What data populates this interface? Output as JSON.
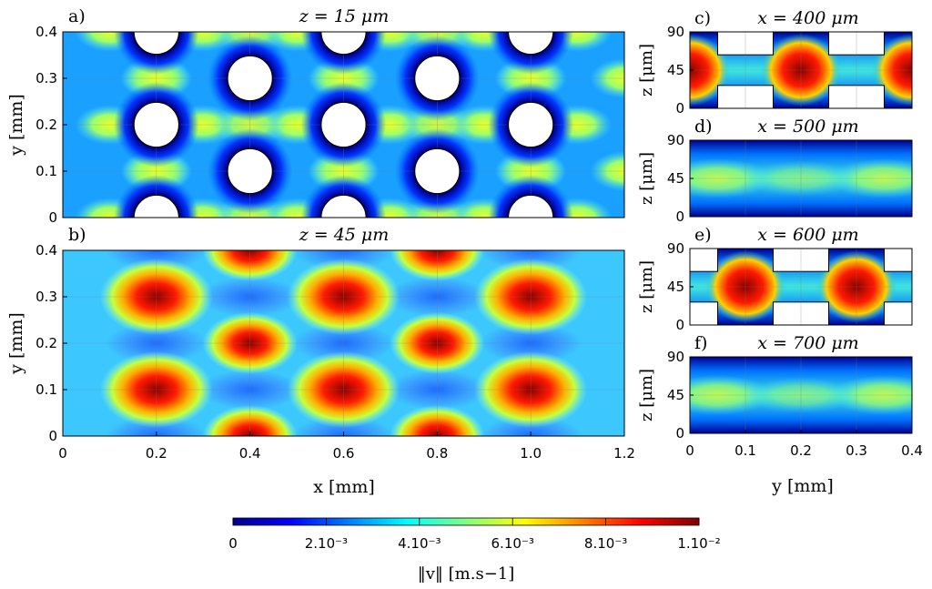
{
  "chart_data": [
    {
      "type": "heatmap",
      "panel": "a)",
      "title": "z = 15 μm",
      "xlabel": "",
      "ylabel": "y [mm]",
      "xlim": [
        0,
        1.2
      ],
      "ylim": [
        0,
        0.4
      ],
      "xticks": [],
      "yticks": [
        "0",
        "0.1",
        "0.2",
        "0.3",
        "0.4"
      ],
      "obstacles_xy_mm": [
        [
          0.2,
          0.0
        ],
        [
          0.2,
          0.2
        ],
        [
          0.2,
          0.4
        ],
        [
          0.4,
          0.1
        ],
        [
          0.4,
          0.3
        ],
        [
          0.6,
          0.0
        ],
        [
          0.6,
          0.2
        ],
        [
          0.6,
          0.4
        ],
        [
          0.8,
          0.1
        ],
        [
          0.8,
          0.3
        ],
        [
          1.0,
          0.0
        ],
        [
          1.0,
          0.2
        ],
        [
          1.0,
          0.4
        ]
      ],
      "obstacle_radius_mm": 0.048,
      "velocity_peak": 0.006,
      "grid": true
    },
    {
      "type": "heatmap",
      "panel": "b)",
      "title": "z = 45 μm",
      "xlabel": "x [mm]",
      "ylabel": "y [mm]",
      "xlim": [
        0,
        1.2
      ],
      "ylim": [
        0,
        0.4
      ],
      "xticks": [
        "0",
        "0.2",
        "0.4",
        "0.6",
        "0.8",
        "1.0",
        "1.2"
      ],
      "yticks": [
        "0",
        "0.1",
        "0.2",
        "0.3",
        "0.4"
      ],
      "hotspots_xy_mm": [
        [
          0.2,
          0.1
        ],
        [
          0.2,
          0.3
        ],
        [
          0.4,
          0.0
        ],
        [
          0.4,
          0.2
        ],
        [
          0.4,
          0.4
        ],
        [
          0.6,
          0.1
        ],
        [
          0.6,
          0.3
        ],
        [
          0.8,
          0.0
        ],
        [
          0.8,
          0.2
        ],
        [
          0.8,
          0.4
        ],
        [
          1.0,
          0.1
        ],
        [
          1.0,
          0.3
        ]
      ],
      "velocity_peak": 0.01,
      "grid": true
    },
    {
      "type": "heatmap",
      "panel": "c)",
      "title": "x = 400 μm",
      "xlabel": "",
      "ylabel": "z [μm]",
      "xlim": [
        0,
        0.4
      ],
      "ylim": [
        0,
        90
      ],
      "yticks": [
        "0",
        "45",
        "90"
      ],
      "hotspots_y_mm": [
        0.0,
        0.2,
        0.4
      ],
      "velocity_peak": 0.01
    },
    {
      "type": "heatmap",
      "panel": "d)",
      "title": "x = 500 μm",
      "xlabel": "",
      "ylabel": "z [μm]",
      "xlim": [
        0,
        0.4
      ],
      "ylim": [
        0,
        90
      ],
      "yticks": [
        "0",
        "45",
        "90"
      ],
      "velocity_peak": 0.006
    },
    {
      "type": "heatmap",
      "panel": "e)",
      "title": "x = 600 μm",
      "xlabel": "",
      "ylabel": "z [μm]",
      "xlim": [
        0,
        0.4
      ],
      "ylim": [
        0,
        90
      ],
      "yticks": [
        "0",
        "45",
        "90"
      ],
      "hotspots_y_mm": [
        0.1,
        0.3
      ],
      "velocity_peak": 0.01
    },
    {
      "type": "heatmap",
      "panel": "f)",
      "title": "x = 700 μm",
      "xlabel": "y [mm]",
      "ylabel": "z [μm]",
      "xlim": [
        0,
        0.4
      ],
      "ylim": [
        0,
        90
      ],
      "xticks": [
        "0",
        "0.1",
        "0.2",
        "0.3",
        "0.4"
      ],
      "yticks": [
        "0",
        "45",
        "90"
      ],
      "velocity_peak": 0.006
    }
  ],
  "colorbar": {
    "label": "‖v‖ [m.s−1]",
    "range": [
      0,
      0.01
    ],
    "ticks": [
      "0",
      "2.10⁻³",
      "4.10⁻³",
      "6.10⁻³",
      "8.10⁻³",
      "1.10⁻²"
    ],
    "colormap": [
      "#00008f",
      "#0000ff",
      "#0080ff",
      "#00ffff",
      "#80ff80",
      "#ffff00",
      "#ff8000",
      "#ff0000",
      "#800000"
    ]
  }
}
